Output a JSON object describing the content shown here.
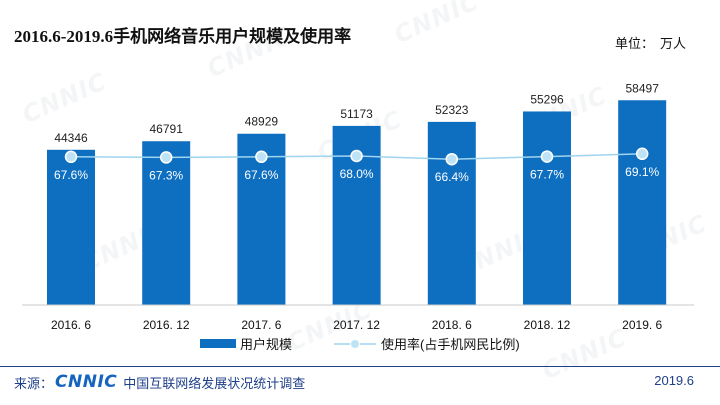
{
  "chart_data": {
    "type": "bar",
    "title": "2016.6-2019.6手机网络音乐用户规模及使用率",
    "unit_label": "单位：",
    "unit_value": "万人",
    "categories": [
      "2016. 6",
      "2016. 12",
      "2017. 6",
      "2017. 12",
      "2018. 6",
      "2018. 12",
      "2019. 6"
    ],
    "series": [
      {
        "name": "用户规模",
        "type": "bar",
        "values": [
          44346,
          46791,
          48929,
          51173,
          52323,
          55296,
          58497
        ]
      },
      {
        "name": "使用率(占手机网民比例)",
        "type": "line",
        "values": [
          67.6,
          67.3,
          67.6,
          68.0,
          66.4,
          67.7,
          69.1
        ],
        "labels": [
          "67.6%",
          "67.3%",
          "67.6%",
          "68.0%",
          "66.4%",
          "67.7%",
          "69.1%"
        ]
      }
    ],
    "y_bar_range": [
      0,
      65000
    ],
    "y_line_range": [
      0,
      100
    ],
    "legend_position": "bottom",
    "grid": false
  },
  "colors": {
    "bar": "#0e6fc1",
    "line": "#9fd4ef",
    "marker": "#bfe3f6",
    "footer": "#1f3f8a"
  },
  "watermark": "CNNIC",
  "footer": {
    "source_label": "来源：",
    "logo_text": "CNNIC",
    "org": "中国互联网络发展状况统计调查",
    "date": "2019.6"
  }
}
